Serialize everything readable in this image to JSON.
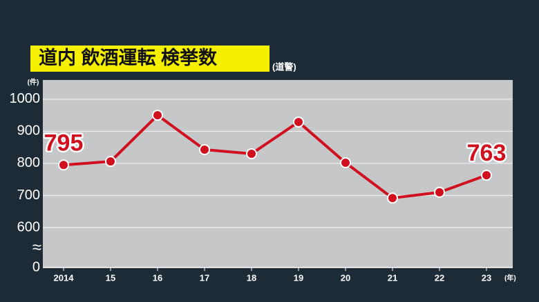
{
  "chart_data": {
    "type": "line",
    "title": "道内 飲酒運転 検挙数",
    "subtitle": "(道警)",
    "y_unit": "(件)",
    "x_unit": "(年)",
    "axis_break_label": "≈",
    "categories": [
      "2014",
      "15",
      "16",
      "17",
      "18",
      "19",
      "20",
      "21",
      "22",
      "23"
    ],
    "values": [
      795,
      806,
      950,
      843,
      830,
      929,
      802,
      692,
      710,
      763
    ],
    "color": "#d0101e",
    "value_label_points": "first-last",
    "ylim": [
      0,
      1060
    ],
    "yticks": [
      0,
      600,
      700,
      800,
      900,
      1000
    ],
    "grid": true
  }
}
